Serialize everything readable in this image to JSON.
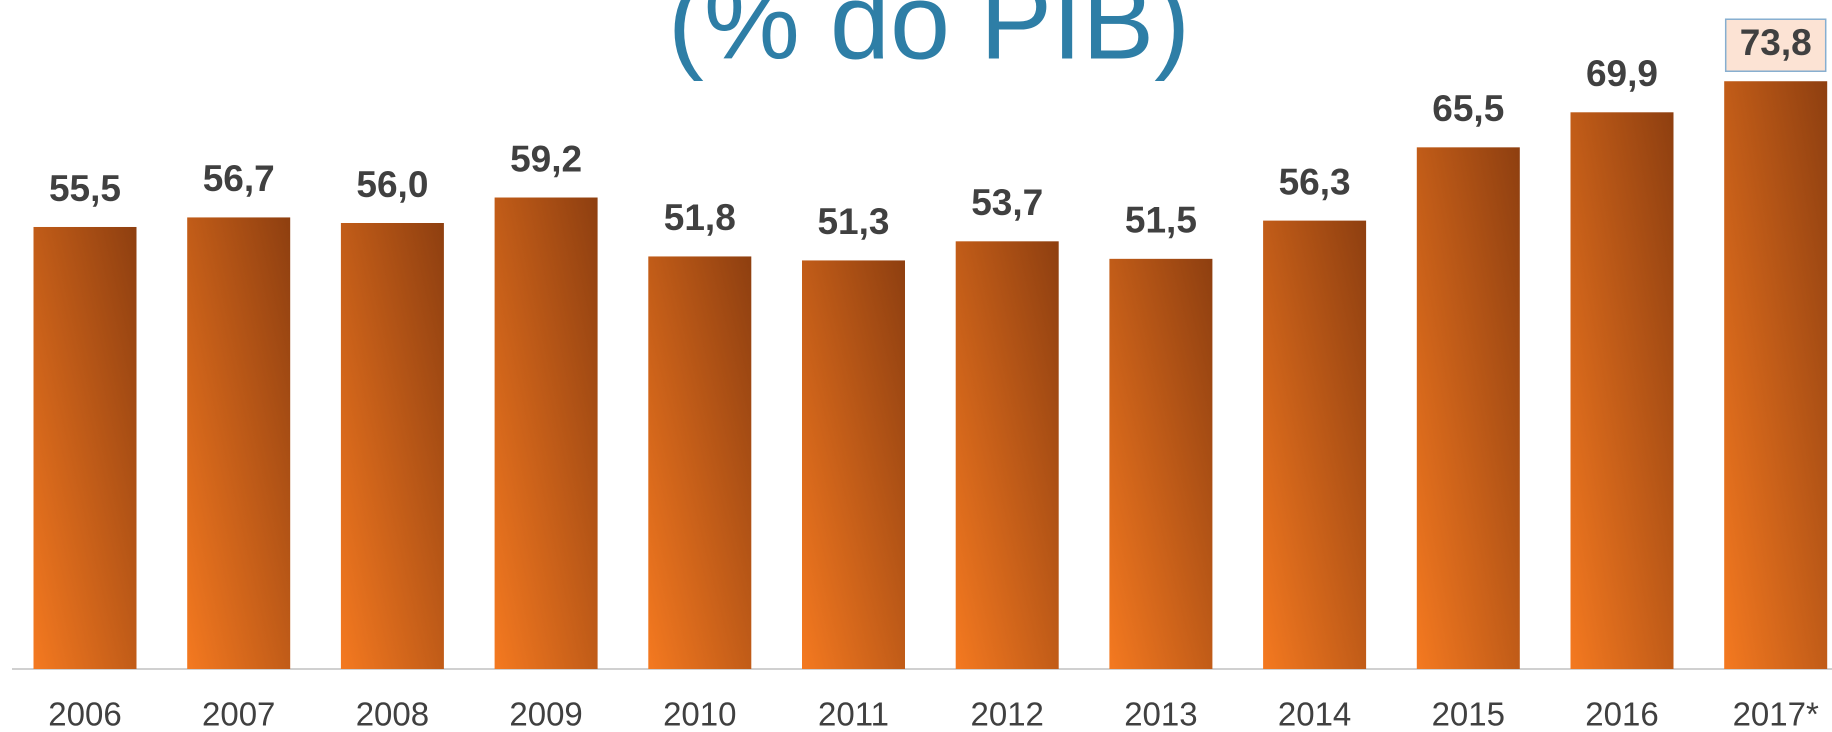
{
  "chart_data": {
    "type": "bar",
    "title": "(% do PIB)",
    "categories": [
      "2006",
      "2007",
      "2008",
      "2009",
      "2010",
      "2011",
      "2012",
      "2013",
      "2014",
      "2015",
      "2016",
      "2017*"
    ],
    "values": [
      55.5,
      56.7,
      56.0,
      59.2,
      51.8,
      51.3,
      53.7,
      51.5,
      56.3,
      65.5,
      69.9,
      73.8
    ],
    "value_labels": [
      "55,5",
      "56,7",
      "56,0",
      "59,2",
      "51,8",
      "51,3",
      "53,7",
      "51,5",
      "56,3",
      "65,5",
      "69,9",
      "73,8"
    ],
    "color": "#f47920",
    "ylim": [
      0,
      84
    ]
  }
}
